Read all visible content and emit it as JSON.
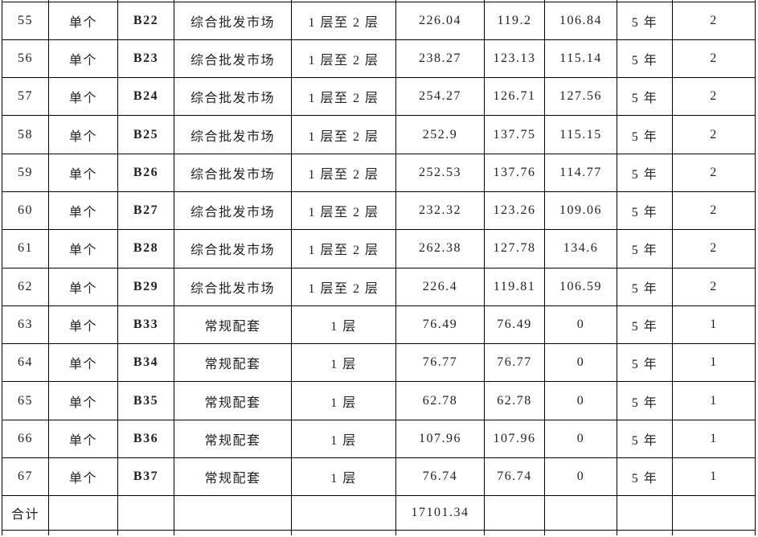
{
  "colors": {
    "background": "#ffffff",
    "text_color": "#222222",
    "accent_red": "#e02626",
    "border_color": "#000000"
  },
  "table": {
    "rows": [
      [
        "55",
        "单个",
        "B22",
        "综合批发市场",
        "1 层至 2 层",
        "226.04",
        "119.2",
        "106.84",
        "5 年",
        "2"
      ],
      [
        "56",
        "单个",
        "B23",
        "综合批发市场",
        "1 层至 2 层",
        "238.27",
        "123.13",
        "115.14",
        "5 年",
        "2"
      ],
      [
        "57",
        "单个",
        "B24",
        "综合批发市场",
        "1 层至 2 层",
        "254.27",
        "126.71",
        "127.56",
        "5 年",
        "2"
      ],
      [
        "58",
        "单个",
        "B25",
        "综合批发市场",
        "1 层至 2 层",
        "252.9",
        "137.75",
        "115.15",
        "5 年",
        "2"
      ],
      [
        "59",
        "单个",
        "B26",
        "综合批发市场",
        "1 层至 2 层",
        "252.53",
        "137.76",
        "114.77",
        "5 年",
        "2"
      ],
      [
        "60",
        "单个",
        "B27",
        "综合批发市场",
        "1 层至 2 层",
        "232.32",
        "123.26",
        "109.06",
        "5 年",
        "2"
      ],
      [
        "61",
        "单个",
        "B28",
        "综合批发市场",
        "1 层至 2 层",
        "262.38",
        "127.78",
        "134.6",
        "5 年",
        "2"
      ],
      [
        "62",
        "单个",
        "B29",
        "综合批发市场",
        "1 层至 2 层",
        "226.4",
        "119.81",
        "106.59",
        "5 年",
        "2"
      ],
      [
        "63",
        "单个",
        "B33",
        "常规配套",
        "1 层",
        "76.49",
        "76.49",
        "0",
        "5 年",
        "1"
      ],
      [
        "64",
        "单个",
        "B34",
        "常规配套",
        "1 层",
        "76.77",
        "76.77",
        "0",
        "5 年",
        "1"
      ],
      [
        "65",
        "单个",
        "B35",
        "常规配套",
        "1 层",
        "62.78",
        "62.78",
        "0",
        "5 年",
        "1"
      ],
      [
        "66",
        "单个",
        "B36",
        "常规配套",
        "1 层",
        "107.96",
        "107.96",
        "0",
        "5 年",
        "1"
      ],
      [
        "67",
        "单个",
        "B37",
        "常规配套",
        "1 层",
        "76.74",
        "76.74",
        "0",
        "5 年",
        "1"
      ]
    ],
    "summary_row": [
      "合计",
      "",
      "",
      "",
      "",
      "17101.34",
      "",
      "",
      "",
      ""
    ]
  }
}
